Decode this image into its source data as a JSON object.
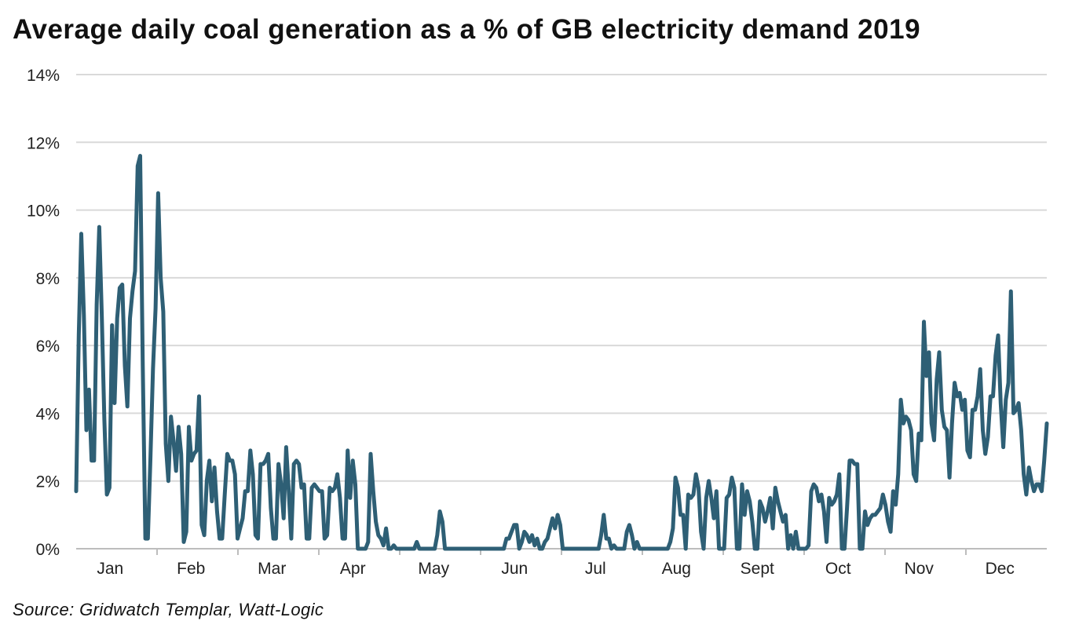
{
  "title": "Average daily coal generation as a % of GB electricity demand 2019",
  "source": "Source: Gridwatch Templar, Watt-Logic",
  "colors": {
    "line": "#2e5f75",
    "grid": "#d9d9d9",
    "axis": "#bdbdbd"
  },
  "chart_data": {
    "type": "line",
    "title": "Average daily coal generation as a % of GB electricity demand 2019",
    "xlabel": "",
    "ylabel": "",
    "ylim": [
      0,
      14
    ],
    "y_ticks": [
      0,
      2,
      4,
      6,
      8,
      10,
      12,
      14
    ],
    "y_tick_labels": [
      "0%",
      "2%",
      "4%",
      "6%",
      "8%",
      "10%",
      "12%",
      "14%"
    ],
    "month_labels": [
      "Jan",
      "Feb",
      "Mar",
      "Apr",
      "May",
      "Jun",
      "Jul",
      "Aug",
      "Sept",
      "Oct",
      "Nov",
      "Dec"
    ],
    "grid": "horizontal",
    "legend": "none",
    "x_unit": "day of year 2019",
    "series": [
      {
        "values": [
          1.7,
          6.3,
          9.3,
          6.9,
          3.5,
          4.7,
          2.6,
          2.6,
          7.2,
          9.5,
          6.9,
          3.8,
          1.6,
          1.8,
          6.6,
          4.3,
          6.8,
          7.7,
          7.8,
          5.4,
          4.2,
          6.8,
          7.6,
          8.2,
          11.3,
          11.6,
          5.4,
          0.3,
          0.3,
          2.7,
          5.3,
          7.1,
          10.5,
          8.0,
          7.0,
          3.1,
          2.0,
          3.9,
          3.2,
          2.3,
          3.6,
          2.8,
          0.2,
          0.5,
          3.6,
          2.6,
          2.8,
          2.9,
          4.5,
          0.7,
          0.4,
          2.0,
          2.6,
          1.4,
          2.4,
          1.1,
          0.3,
          0.3,
          1.6,
          2.8,
          2.6,
          2.6,
          2.2,
          0.3,
          0.6,
          0.9,
          1.7,
          1.7,
          2.9,
          2.2,
          0.4,
          0.3,
          2.5,
          2.5,
          2.6,
          2.8,
          1.2,
          0.3,
          0.3,
          2.5,
          1.9,
          0.9,
          3.0,
          1.7,
          0.3,
          2.5,
          2.6,
          2.5,
          1.8,
          1.9,
          0.3,
          0.3,
          1.8,
          1.9,
          1.8,
          1.7,
          1.7,
          0.3,
          0.4,
          1.8,
          1.7,
          1.8,
          2.2,
          1.5,
          0.3,
          0.3,
          2.9,
          1.5,
          2.6,
          1.9,
          0.0,
          0.0,
          0.0,
          0.0,
          0.2,
          2.8,
          1.7,
          0.8,
          0.4,
          0.3,
          0.1,
          0.6,
          0.0,
          0.0,
          0.1,
          0.0,
          0.0,
          0.0,
          0.0,
          0.0,
          0.0,
          0.0,
          0.0,
          0.2,
          0.0,
          0.0,
          0.0,
          0.0,
          0.0,
          0.0,
          0.0,
          0.4,
          1.1,
          0.8,
          0.0,
          0.0,
          0.0,
          0.0,
          0.0,
          0.0,
          0.0,
          0.0,
          0.0,
          0.0,
          0.0,
          0.0,
          0.0,
          0.0,
          0.0,
          0.0,
          0.0,
          0.0,
          0.0,
          0.0,
          0.0,
          0.0,
          0.0,
          0.0,
          0.3,
          0.3,
          0.5,
          0.7,
          0.7,
          0.0,
          0.2,
          0.5,
          0.4,
          0.2,
          0.4,
          0.1,
          0.3,
          0.0,
          0.0,
          0.2,
          0.3,
          0.6,
          0.9,
          0.6,
          1.0,
          0.7,
          0.0,
          0.0,
          0.0,
          0.0,
          0.0,
          0.0,
          0.0,
          0.0,
          0.0,
          0.0,
          0.0,
          0.0,
          0.0,
          0.0,
          0.0,
          0.4,
          1.0,
          0.3,
          0.3,
          0.0,
          0.1,
          0.0,
          0.0,
          0.0,
          0.0,
          0.5,
          0.7,
          0.4,
          0.0,
          0.2,
          0.0,
          0.0,
          0.0,
          0.0,
          0.0,
          0.0,
          0.0,
          0.0,
          0.0,
          0.0,
          0.0,
          0.0,
          0.2,
          0.6,
          2.1,
          1.8,
          1.0,
          1.0,
          0.0,
          1.6,
          1.5,
          1.6,
          2.2,
          1.8,
          0.5,
          0.0,
          1.5,
          2.0,
          1.5,
          0.9,
          1.7,
          0.0,
          0.0,
          0.0,
          1.5,
          1.6,
          2.1,
          1.8,
          0.0,
          0.0,
          1.9,
          1.0,
          1.7,
          1.4,
          0.8,
          0.0,
          0.0,
          1.4,
          1.2,
          0.8,
          1.1,
          1.5,
          0.6,
          1.8,
          1.4,
          1.1,
          0.8,
          1.0,
          0.0,
          0.4,
          0.0,
          0.5,
          0.0,
          0.0,
          0.0,
          0.0,
          0.1,
          1.7,
          1.9,
          1.8,
          1.4,
          1.6,
          1.1,
          0.2,
          1.5,
          1.3,
          1.4,
          1.6,
          2.2,
          0.0,
          0.0,
          1.2,
          2.6,
          2.6,
          2.5,
          2.5,
          0.0,
          0.0,
          1.1,
          0.7,
          0.9,
          1.0,
          1.0,
          1.1,
          1.2,
          1.6,
          1.3,
          0.8,
          0.5,
          1.7,
          1.3,
          2.2,
          4.4,
          3.7,
          3.9,
          3.8,
          3.5,
          2.2,
          2.0,
          3.4,
          3.2,
          6.7,
          5.1,
          5.8,
          3.7,
          3.2,
          5.0,
          5.8,
          4.1,
          3.6,
          3.5,
          2.1,
          3.7,
          4.9,
          4.5,
          4.6,
          4.1,
          4.4,
          2.9,
          2.7,
          4.1,
          4.1,
          4.5,
          5.3,
          3.5,
          2.8,
          3.3,
          4.5,
          4.5,
          5.7,
          6.3,
          4.3,
          3.0,
          4.4,
          4.9,
          7.6,
          4.0,
          4.1,
          4.3,
          3.5,
          2.2,
          1.6,
          2.4,
          2.0,
          1.7,
          1.9,
          1.9,
          1.7,
          2.6,
          3.7
        ]
      }
    ]
  }
}
